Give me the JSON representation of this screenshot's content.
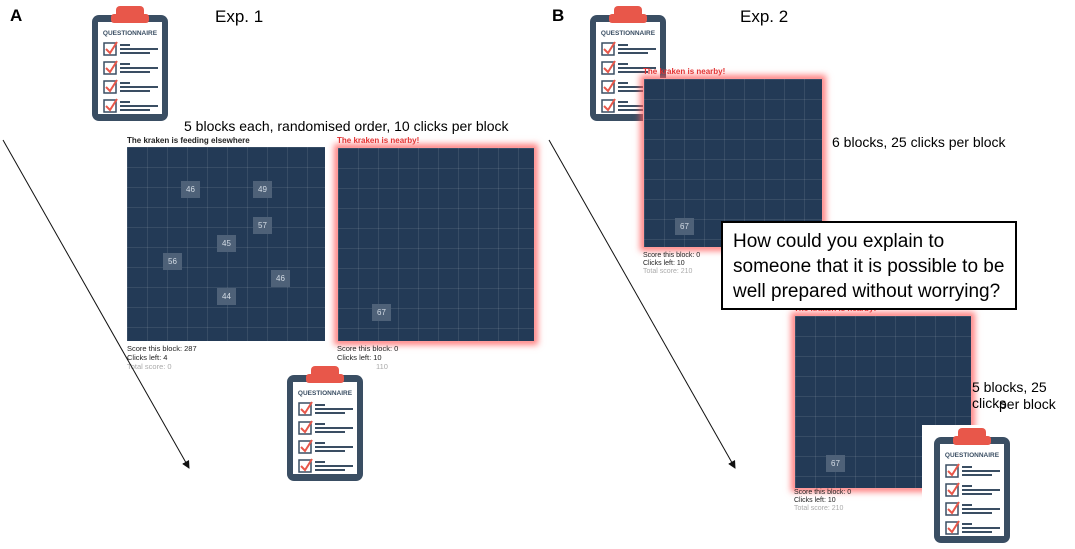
{
  "panel_a": {
    "letter": "A",
    "title": "Exp. 1",
    "design_caption": "5 blocks each, randomised order, 10 clicks per block",
    "grid_left": {
      "status": "The kraken is feeding elsewhere",
      "cells": [
        "46",
        "49",
        "57",
        "45",
        "56",
        "46",
        "44"
      ],
      "score_block": "Score this block: 287",
      "clicks_left": "Clicks left: 4",
      "total_score": "Total score: 0"
    },
    "grid_right": {
      "status": "The kraken is nearby!",
      "cells": [
        "67"
      ],
      "score_block": "Score this block: 0",
      "clicks_left": "Clicks left: 10",
      "total_score": "110"
    }
  },
  "panel_b": {
    "letter": "B",
    "title": "Exp. 2",
    "grid_top": {
      "status": "The kraken is nearby!",
      "cells": [
        "67"
      ],
      "score_block": "Score this block: 0",
      "clicks_left": "Clicks left: 10",
      "total_score": "Total score: 210"
    },
    "caption_top": "6 blocks, 25 clicks per block",
    "question": "How could you explain to someone that it is possible to be well prepared without worrying?",
    "grid_bottom": {
      "status": "The kraken is nearby!",
      "cells": [
        "67"
      ],
      "score_block": "Score this block: 0",
      "clicks_left": "Clicks left: 10",
      "total_score": "Total score: 210"
    },
    "caption_bottom_line1": "5 blocks, 25 clicks",
    "caption_bottom_line2": "per block"
  },
  "clipboard": {
    "label": "QUESTIONNAIRE",
    "colors": {
      "body": "#3a4e63",
      "clip": "#e8574a",
      "paper": "#ffffff",
      "check": "#e8574a",
      "lines": "#3a4e63"
    }
  }
}
